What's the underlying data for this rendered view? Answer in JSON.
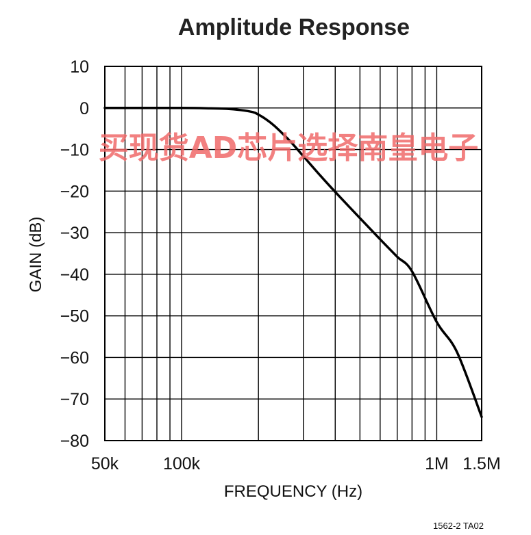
{
  "chart_data": {
    "type": "line",
    "title": "Amplitude Response",
    "xlabel": "FREQUENCY (Hz)",
    "ylabel": "GAIN (dB)",
    "x_scale": "log",
    "xlim": [
      50000,
      1500000
    ],
    "ylim": [
      -80,
      10
    ],
    "grid": true,
    "x_ticks": [
      {
        "value": 50000,
        "label": "50k"
      },
      {
        "value": 100000,
        "label": "100k"
      },
      {
        "value": 1000000,
        "label": "1M"
      },
      {
        "value": 1500000,
        "label": "1.5M"
      }
    ],
    "y_ticks": [
      {
        "value": 10,
        "label": "10"
      },
      {
        "value": 0,
        "label": "0"
      },
      {
        "value": -10,
        "label": "−10"
      },
      {
        "value": -20,
        "label": "−20"
      },
      {
        "value": -30,
        "label": "−30"
      },
      {
        "value": -40,
        "label": "−40"
      },
      {
        "value": -50,
        "label": "−50"
      },
      {
        "value": -60,
        "label": "−60"
      },
      {
        "value": -70,
        "label": "−70"
      },
      {
        "value": -80,
        "label": "−80"
      }
    ],
    "series": [
      {
        "color": "#000000",
        "x": [
          50000,
          100000,
          130000,
          150000,
          170000,
          190000,
          200000,
          215000,
          230000,
          250000,
          270000,
          300000,
          350000,
          400000,
          500000,
          600000,
          700000,
          800000,
          1000000,
          1200000,
          1500000
        ],
        "y": [
          0,
          0,
          -0.1,
          -0.2,
          -0.5,
          -1,
          -1.6,
          -2.8,
          -4.2,
          -6.3,
          -8.4,
          -11.6,
          -16.3,
          -20.2,
          -26.5,
          -31.6,
          -35.8,
          -39.3,
          -51.5,
          -58.7,
          -74.3
        ]
      }
    ]
  },
  "watermark": "买现货AD芯片选择南皇电子",
  "figure_code": "1562-2 TA02"
}
